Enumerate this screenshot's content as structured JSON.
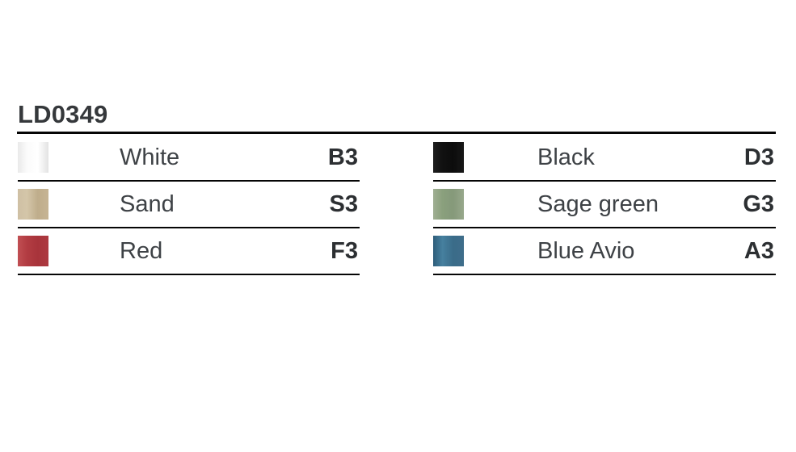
{
  "page": {
    "title": "LD0349"
  },
  "style_tokens": {
    "divider_color": "#050505",
    "heading_color": "#35383b",
    "label_color": "#3e4246",
    "code_color": "#2c2f32",
    "background": "#ffffff"
  },
  "color_table": {
    "columns": [
      {
        "rows": [
          {
            "name": "White",
            "code": "B3",
            "color": "#f2f2f2",
            "swatch_style": "--c1:#e9e9e9;--c2:#fbfbfb;--c3:#ffffff;--c4:#e3e3e3"
          },
          {
            "name": "Sand",
            "code": "S3",
            "color": "#c9b795",
            "swatch_style": "--c1:#cfc0a4;--c2:#d4c6a9;--c3:#bfad8b;--c4:#c6b494"
          },
          {
            "name": "Red",
            "code": "F3",
            "color": "#b03a40",
            "swatch_style": "--c1:#c14f53;--c2:#b23c42;--c3:#a8343b;--c4:#ad3940"
          }
        ]
      },
      {
        "rows": [
          {
            "name": "Black",
            "code": "D3",
            "color": "#141414",
            "swatch_style": "--c1:#1e1e1e;--c2:#111111;--c3:#0c0c0c;--c4:#171717"
          },
          {
            "name": "Sage green",
            "code": "G3",
            "color": "#8fa383",
            "swatch_style": "--c1:#a0af93;--c2:#8aa07d;--c3:#85997a;--c4:#98a88c"
          },
          {
            "name": "Blue Avio",
            "code": "A3",
            "color": "#3c6d8a",
            "swatch_style": "--c1:#2e5d7a;--c2:#46809f;--c3:#3a6c89;--c4:#3f6d8a"
          }
        ]
      }
    ]
  }
}
